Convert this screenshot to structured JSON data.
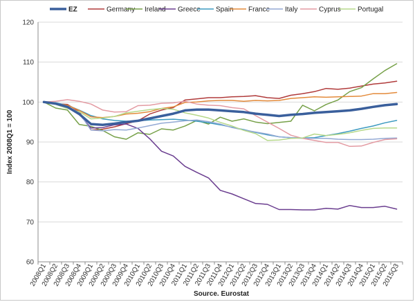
{
  "chart_data": {
    "type": "line",
    "xlabel": "Source. Eurostat",
    "ylabel": "Index 2008Q1 = 100",
    "ylim": [
      60,
      120
    ],
    "yticks": [
      60,
      70,
      80,
      90,
      100,
      110,
      120
    ],
    "grid": "horizontal",
    "legend": "top",
    "categories": [
      "2008Q1",
      "2008Q2",
      "2008Q3",
      "2008Q4",
      "2009Q1",
      "2009Q2",
      "2009Q3",
      "2009Q4",
      "2010Q1",
      "2010Q2",
      "2010Q3",
      "2010Q4",
      "2011Q1",
      "2011Q2",
      "2011Q3",
      "2011Q4",
      "2012Q1",
      "2012Q2",
      "2012Q3",
      "2012Q4",
      "2013Q1",
      "2013Q2",
      "2013Q3",
      "2013Q4",
      "2014Q1",
      "2014Q2",
      "2014Q3",
      "2014Q4",
      "2015Q1",
      "2015Q2",
      "2015Q3"
    ],
    "series": [
      {
        "name": "EZ",
        "color": "#3a5f9c",
        "width": 3.5,
        "values": [
          100,
          99.6,
          98.8,
          97.0,
          94.5,
          94.3,
          94.6,
          95.0,
          95.3,
          95.9,
          96.5,
          97.1,
          97.9,
          98.1,
          98.1,
          97.9,
          97.7,
          97.5,
          97.1,
          96.8,
          96.5,
          96.8,
          97.0,
          97.3,
          97.5,
          97.7,
          97.9,
          98.3,
          98.8,
          99.2,
          99.5
        ]
      },
      {
        "name": "Germany",
        "color": "#b03a3a",
        "width": 1.5,
        "values": [
          100,
          99.6,
          99.4,
          97.6,
          93.0,
          93.2,
          93.8,
          94.6,
          95.3,
          97.0,
          98.0,
          98.6,
          100.5,
          100.8,
          101.1,
          101.1,
          101.3,
          101.4,
          101.6,
          101.1,
          100.9,
          101.7,
          102.1,
          102.6,
          103.4,
          103.2,
          103.5,
          104.0,
          104.5,
          104.8,
          105.2
        ]
      },
      {
        "name": "Ireland",
        "color": "#76a048",
        "width": 1.5,
        "values": [
          100,
          98.5,
          98.0,
          94.4,
          93.9,
          92.9,
          91.3,
          90.7,
          92.3,
          91.9,
          93.3,
          93.0,
          94.0,
          95.4,
          94.5,
          96.2,
          95.2,
          95.8,
          95.0,
          94.6,
          94.9,
          95.2,
          99.2,
          97.8,
          99.4,
          100.5,
          102.6,
          103.6,
          105.8,
          107.9,
          109.6
        ]
      },
      {
        "name": "Greece",
        "color": "#6a3d8f",
        "width": 1.5,
        "values": [
          100,
          99.7,
          99.0,
          97.0,
          93.5,
          93.6,
          94.3,
          94.5,
          93.4,
          90.8,
          87.7,
          86.5,
          83.9,
          82.4,
          81.0,
          77.9,
          77.0,
          75.8,
          74.6,
          74.4,
          73.1,
          73.1,
          73.0,
          73.0,
          73.4,
          73.2,
          74.1,
          73.6,
          73.6,
          73.9,
          73.2
        ]
      },
      {
        "name": "Spain",
        "color": "#3c9ac0",
        "width": 1.5,
        "values": [
          100,
          99.8,
          99.2,
          98.0,
          96.6,
          95.8,
          95.4,
          95.2,
          95.3,
          95.5,
          95.6,
          95.7,
          95.5,
          95.2,
          94.8,
          94.3,
          93.7,
          93.1,
          92.4,
          91.8,
          91.3,
          91.1,
          91.0,
          91.1,
          91.6,
          92.1,
          92.7,
          93.4,
          94.0,
          94.8,
          95.4
        ]
      },
      {
        "name": "France",
        "color": "#e38a3a",
        "width": 1.5,
        "values": [
          100,
          99.6,
          99.2,
          97.9,
          96.3,
          96.1,
          96.4,
          97.0,
          97.2,
          97.6,
          98.4,
          98.8,
          99.9,
          100.0,
          100.3,
          100.4,
          100.4,
          100.2,
          100.4,
          100.3,
          100.4,
          100.9,
          101.1,
          101.3,
          101.2,
          101.3,
          101.4,
          101.5,
          102.1,
          102.1,
          102.4
        ]
      },
      {
        "name": "Italy",
        "color": "#93a9d4",
        "width": 1.5,
        "values": [
          100,
          99.7,
          98.9,
          97.3,
          93.0,
          92.8,
          93.1,
          93.0,
          93.5,
          94.1,
          94.7,
          95.0,
          95.3,
          95.5,
          95.1,
          94.5,
          93.6,
          93.0,
          92.5,
          92.0,
          91.3,
          91.1,
          90.9,
          90.9,
          90.9,
          90.7,
          90.6,
          90.6,
          90.7,
          90.9,
          91.0
        ]
      },
      {
        "name": "Cyprus",
        "color": "#e39aa2",
        "width": 1.5,
        "values": [
          100,
          100.2,
          100.6,
          100.2,
          99.5,
          98.0,
          97.5,
          97.6,
          99.1,
          99.2,
          99.7,
          99.8,
          100.2,
          99.5,
          99.2,
          99.1,
          98.6,
          98.3,
          96.6,
          95.0,
          93.4,
          91.7,
          90.9,
          90.4,
          89.9,
          89.9,
          88.9,
          89.0,
          89.9,
          90.6,
          90.8
        ]
      },
      {
        "name": "Portugal",
        "color": "#b6d88a",
        "width": 1.5,
        "values": [
          100,
          99.4,
          98.4,
          97.6,
          95.8,
          96.0,
          96.4,
          97.3,
          97.7,
          98.1,
          98.4,
          98.2,
          97.3,
          96.7,
          96.0,
          94.9,
          94.0,
          92.9,
          92.1,
          90.4,
          90.5,
          90.9,
          91.0,
          92.0,
          91.6,
          91.9,
          92.3,
          92.9,
          93.4,
          93.5,
          93.5
        ]
      }
    ]
  }
}
